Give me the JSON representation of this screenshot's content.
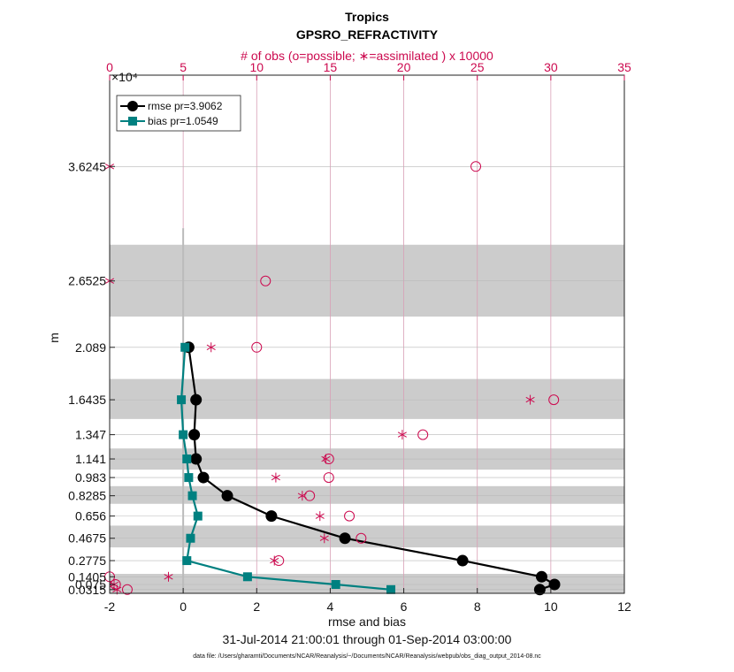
{
  "chart_data": {
    "type": "line",
    "title": "Tropics",
    "subtitle": "GPSRO_REFRACTIVITY",
    "top_axis_label": "# of obs (o=possible; ∗=assimilated ) x 10000",
    "top_axis_multiplier": "×10⁴",
    "xlabel": "rmse and bias",
    "ylabel": "m",
    "date_range": "31-Jul-2014 21:00:01 through 01-Sep-2014 03:00:00",
    "footnote": "data file: /Users/gharamti/Documents/NCAR/Reanalysis/~/Documents/NCAR/Reanalysis/webpub/obs_diag_output_2014-08.nc",
    "xlim": [
      -2,
      12
    ],
    "x_ticks": [
      "-2",
      "0",
      "2",
      "4",
      "6",
      "8",
      "10",
      "12"
    ],
    "top_xlim": [
      0,
      35
    ],
    "top_ticks": [
      "0",
      "5",
      "10",
      "15",
      "20",
      "25",
      "30",
      "35"
    ],
    "y_levels": [
      0.0315,
      0.075,
      0.1405,
      0.2775,
      0.4675,
      0.656,
      0.8285,
      0.983,
      1.141,
      1.347,
      1.6435,
      2.089,
      2.6525,
      3.6245
    ],
    "y_tick_labels": [
      "0.0315",
      "0.075",
      "0.1405",
      "0.2775",
      "0.4675",
      "0.656",
      "0.8285",
      "0.983",
      "1.141",
      "1.347",
      "1.6435",
      "2.089",
      "2.6525",
      "3.6245"
    ],
    "ylim": [
      0,
      4.4
    ],
    "ylabel_multiplier": "×10⁴",
    "shaded_bands": [
      [
        2.35,
        2.96
      ],
      [
        1.48,
        1.82
      ],
      [
        1.05,
        1.23
      ],
      [
        0.76,
        0.91
      ],
      [
        0.39,
        0.575
      ],
      [
        0.0,
        0.165
      ]
    ],
    "series": [
      {
        "name": "rmse pr=3.9062",
        "color": "#000000",
        "marker": "circle",
        "x": [
          9.7,
          10.1,
          9.75,
          7.6,
          4.4,
          2.4,
          1.2,
          0.55,
          0.35,
          0.3,
          0.35,
          0.15
        ],
        "y": [
          0.0315,
          0.075,
          0.1405,
          0.2775,
          0.4675,
          0.656,
          0.8285,
          0.983,
          1.141,
          1.347,
          1.6435,
          2.089
        ]
      },
      {
        "name": "bias pr=1.0549",
        "color": "#008080",
        "marker": "square",
        "x": [
          5.65,
          4.15,
          1.75,
          0.1,
          0.2,
          0.4,
          0.25,
          0.15,
          0.1,
          0.0,
          -0.05,
          0.05
        ],
        "y": [
          0.0315,
          0.075,
          0.1405,
          0.2775,
          0.4675,
          0.656,
          0.8285,
          0.983,
          1.141,
          1.347,
          1.6435,
          2.089
        ]
      }
    ],
    "obs_possible": {
      "name": "possible",
      "x": [
        1.2,
        0.4,
        0.0,
        11.5,
        17.1,
        16.3,
        13.6,
        14.9,
        14.9,
        21.3,
        30.2,
        10.0,
        10.6,
        24.9
      ],
      "y": [
        0.0315,
        0.075,
        0.1405,
        0.2775,
        0.4675,
        0.656,
        0.8285,
        0.983,
        1.141,
        1.347,
        1.6435,
        2.089,
        2.6525,
        3.6245
      ]
    },
    "obs_assimilated": {
      "name": "assimilated",
      "x": [
        0.5,
        0.3,
        4.0,
        11.2,
        14.6,
        14.3,
        13.1,
        11.3,
        14.7,
        19.9,
        28.6,
        6.9,
        0.0,
        0.0
      ],
      "y": [
        0.0315,
        0.075,
        0.1405,
        0.2775,
        0.4675,
        0.656,
        0.8285,
        0.983,
        1.141,
        1.347,
        1.6435,
        2.089,
        2.6525,
        3.6245
      ]
    },
    "colors": {
      "rmse": "#000000",
      "bias": "#008080",
      "obs": "#cc0a4f",
      "band": "#cccccc",
      "zero_line": "#bbbbbb"
    },
    "legend": {
      "placement": "top-left",
      "entries": [
        "rmse pr=3.9062",
        "bias pr=1.0549"
      ]
    }
  }
}
